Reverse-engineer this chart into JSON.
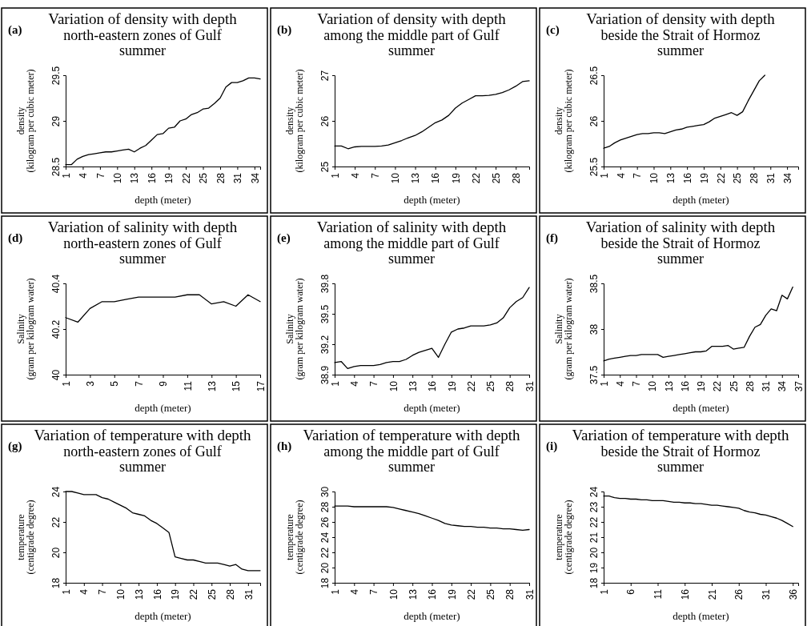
{
  "chart_data": [
    {
      "type": "line",
      "title": "Variation of density with depth",
      "subtitle": "north-eastern zones of Gulf\nsummer",
      "xlabel": "depth (meter)",
      "ylabel": "density\n(kilogram per cubic meter)",
      "annotations": [
        "(a)"
      ],
      "xlim": [
        1,
        35
      ],
      "xticks": [
        1,
        4,
        7,
        10,
        13,
        16,
        19,
        22,
        25,
        28,
        31,
        34
      ],
      "ylim": [
        28.5,
        29.5
      ],
      "yticks": [
        28.5,
        29,
        29.5
      ],
      "series": [
        {
          "color": "#000000",
          "x": [
            1,
            2,
            3,
            4,
            5,
            6,
            7,
            8,
            9,
            10,
            11,
            12,
            13,
            14,
            15,
            16,
            17,
            18,
            19,
            20,
            21,
            22,
            23,
            24,
            25,
            26,
            27,
            28,
            29,
            30,
            31,
            32,
            33,
            34,
            35
          ],
          "values": [
            28.52,
            28.52,
            28.58,
            28.61,
            28.63,
            28.64,
            28.65,
            28.66,
            28.66,
            28.67,
            28.68,
            28.69,
            28.66,
            28.7,
            28.73,
            28.79,
            28.85,
            28.86,
            28.92,
            28.93,
            29.0,
            29.02,
            29.07,
            29.09,
            29.13,
            29.14,
            29.19,
            29.25,
            29.37,
            29.42,
            29.42,
            29.44,
            29.47,
            29.47,
            29.46
          ]
        }
      ]
    },
    {
      "type": "line",
      "title": "Variation of density with depth",
      "subtitle": "among the middle part of Gulf\nsummer",
      "xlabel": "depth (meter)",
      "ylabel": "density\n(kilogram per cubic meter)",
      "annotations": [
        "(b)"
      ],
      "xlim": [
        1,
        30
      ],
      "xticks": [
        1,
        4,
        7,
        10,
        13,
        16,
        19,
        22,
        25,
        28
      ],
      "ylim": [
        25,
        27
      ],
      "yticks": [
        25,
        26,
        27
      ],
      "series": [
        {
          "color": "#000000",
          "x": [
            1,
            2,
            3,
            4,
            5,
            6,
            7,
            8,
            9,
            10,
            11,
            12,
            13,
            14,
            15,
            16,
            17,
            18,
            19,
            20,
            21,
            22,
            23,
            24,
            25,
            26,
            27,
            28,
            29,
            30
          ],
          "values": [
            25.45,
            25.45,
            25.39,
            25.43,
            25.44,
            25.44,
            25.44,
            25.45,
            25.47,
            25.52,
            25.57,
            25.63,
            25.68,
            25.76,
            25.86,
            25.96,
            26.02,
            26.12,
            26.28,
            26.39,
            26.47,
            26.55,
            26.55,
            26.56,
            26.58,
            26.62,
            26.68,
            26.76,
            26.86,
            26.88
          ]
        }
      ]
    },
    {
      "type": "line",
      "title": "Variation of density with depth",
      "subtitle": "beside the Strait of Hormoz\nsummer",
      "xlabel": "depth (meter)",
      "ylabel": "density\n(kilogram per cubic meter)",
      "annotations": [
        "(c)"
      ],
      "xlim": [
        1,
        36
      ],
      "xticks": [
        1,
        4,
        7,
        10,
        13,
        16,
        19,
        22,
        25,
        28,
        31,
        34
      ],
      "ylim": [
        25.5,
        26.5
      ],
      "yticks": [
        25.5,
        26,
        26.5
      ],
      "series": [
        {
          "color": "#000000",
          "x": [
            1,
            2,
            3,
            4,
            5,
            6,
            7,
            8,
            9,
            10,
            11,
            12,
            13,
            14,
            15,
            16,
            17,
            18,
            19,
            20,
            21,
            22,
            23,
            24,
            25,
            26,
            27,
            28,
            29,
            30
          ],
          "values": [
            25.7,
            25.72,
            25.76,
            25.79,
            25.81,
            25.83,
            25.85,
            25.86,
            25.86,
            25.87,
            25.87,
            25.86,
            25.88,
            25.9,
            25.91,
            25.93,
            25.94,
            25.95,
            25.96,
            25.99,
            26.03,
            26.05,
            26.07,
            26.09,
            26.06,
            26.1,
            26.22,
            26.33,
            26.44,
            26.5
          ]
        }
      ]
    },
    {
      "type": "line",
      "title": "Variation of salinity with depth",
      "subtitle": "north-eastern zones of Gulf\nsummer",
      "xlabel": "depth (meter)",
      "ylabel": "Salinity\n(gram per kilogram water)",
      "annotations": [
        "(d)"
      ],
      "xlim": [
        1,
        17
      ],
      "xticks": [
        1,
        3,
        5,
        7,
        9,
        11,
        13,
        15,
        17
      ],
      "ylim": [
        40,
        40.4
      ],
      "yticks": [
        40,
        40.2,
        40.4
      ],
      "series": [
        {
          "color": "#000000",
          "x": [
            1,
            2,
            3,
            4,
            5,
            6,
            7,
            8,
            9,
            10,
            11,
            12,
            13,
            14,
            15,
            16,
            17
          ],
          "values": [
            40.25,
            40.23,
            40.29,
            40.32,
            40.32,
            40.33,
            40.34,
            40.34,
            40.34,
            40.34,
            40.35,
            40.35,
            40.31,
            40.32,
            40.3,
            40.35,
            40.32
          ]
        }
      ]
    },
    {
      "type": "line",
      "title": "Variation of salinity with depth",
      "subtitle": "among the middle part of Gulf\nsummer",
      "xlabel": "depth (meter)",
      "ylabel": "Salinity\n(gram per kilogram water)",
      "annotations": [
        "(e)"
      ],
      "xlim": [
        1,
        31
      ],
      "xticks": [
        1,
        4,
        7,
        10,
        13,
        16,
        19,
        22,
        25,
        28,
        31
      ],
      "ylim": [
        38.9,
        39.8
      ],
      "yticks": [
        38.9,
        39.2,
        39.5,
        39.8
      ],
      "series": [
        {
          "color": "#000000",
          "x": [
            1,
            2,
            3,
            4,
            5,
            6,
            7,
            8,
            9,
            10,
            11,
            12,
            13,
            14,
            15,
            16,
            17,
            18,
            19,
            20,
            21,
            22,
            23,
            24,
            25,
            26,
            27,
            28,
            29,
            30,
            31
          ],
          "values": [
            39.02,
            39.03,
            38.96,
            38.98,
            38.99,
            38.99,
            38.99,
            39.0,
            39.02,
            39.03,
            39.03,
            39.05,
            39.09,
            39.12,
            39.14,
            39.16,
            39.07,
            39.2,
            39.32,
            39.35,
            39.36,
            39.38,
            39.38,
            39.38,
            39.39,
            39.41,
            39.46,
            39.56,
            39.62,
            39.66,
            39.76
          ]
        }
      ]
    },
    {
      "type": "line",
      "title": "Variation of salinity with depth",
      "subtitle": "beside the Strait of Hormoz\nsummer",
      "xlabel": "depth (meter)",
      "ylabel": "Salinity\n(gram per kilogram water)",
      "annotations": [
        "(f)"
      ],
      "xlim": [
        1,
        37
      ],
      "xticks": [
        1,
        4,
        7,
        10,
        13,
        16,
        19,
        22,
        25,
        28,
        31,
        34,
        37
      ],
      "ylim": [
        37.5,
        38.5
      ],
      "yticks": [
        37.5,
        38,
        38.5
      ],
      "series": [
        {
          "color": "#000000",
          "x": [
            1,
            2,
            3,
            4,
            5,
            6,
            7,
            8,
            9,
            10,
            11,
            12,
            13,
            14,
            15,
            16,
            17,
            18,
            19,
            20,
            21,
            22,
            23,
            24,
            25,
            26,
            27,
            28,
            29,
            30,
            31,
            32,
            33,
            34,
            35,
            36
          ],
          "values": [
            37.65,
            37.67,
            37.68,
            37.69,
            37.7,
            37.71,
            37.71,
            37.72,
            37.72,
            37.72,
            37.72,
            37.69,
            37.7,
            37.71,
            37.72,
            37.73,
            37.74,
            37.75,
            37.75,
            37.76,
            37.81,
            37.81,
            37.81,
            37.82,
            37.78,
            37.79,
            37.8,
            37.92,
            38.02,
            38.05,
            38.15,
            38.22,
            38.2,
            38.37,
            38.33,
            38.46
          ]
        }
      ]
    },
    {
      "type": "line",
      "title": "Variation of temperature with depth",
      "subtitle": "north-eastern zones of Gulf\nsummer",
      "xlabel": "depth (meter)",
      "ylabel": "temperature\n(centigrade degree)",
      "annotations": [
        "(g)"
      ],
      "xlim": [
        1,
        33
      ],
      "xticks": [
        1,
        4,
        7,
        10,
        13,
        16,
        19,
        22,
        25,
        28,
        31
      ],
      "ylim": [
        18,
        24
      ],
      "yticks": [
        18,
        20,
        22,
        24
      ],
      "series": [
        {
          "color": "#000000",
          "x": [
            1,
            2,
            3,
            4,
            5,
            6,
            7,
            8,
            9,
            10,
            11,
            12,
            13,
            14,
            15,
            16,
            17,
            18,
            19,
            20,
            21,
            22,
            23,
            24,
            25,
            26,
            27,
            28,
            29,
            30,
            31,
            32,
            33
          ],
          "values": [
            24.0,
            24.0,
            23.9,
            23.8,
            23.8,
            23.8,
            23.6,
            23.5,
            23.3,
            23.1,
            22.9,
            22.6,
            22.5,
            22.4,
            22.1,
            21.9,
            21.6,
            21.3,
            19.7,
            19.6,
            19.5,
            19.5,
            19.4,
            19.3,
            19.3,
            19.3,
            19.2,
            19.1,
            19.2,
            18.9,
            18.8,
            18.8,
            18.8
          ]
        }
      ]
    },
    {
      "type": "line",
      "title": "Variation of temperature with depth",
      "subtitle": "among the middle part of Gulf\nsummer",
      "xlabel": "depth (meter)",
      "ylabel": "temperature\n(centigrade degree)",
      "annotations": [
        "(h)"
      ],
      "xlim": [
        1,
        31
      ],
      "xticks": [
        1,
        4,
        7,
        10,
        13,
        16,
        19,
        22,
        25,
        28,
        31
      ],
      "ylim": [
        18,
        30
      ],
      "yticks": [
        18,
        20,
        22,
        24,
        26,
        28,
        30
      ],
      "series": [
        {
          "color": "#000000",
          "x": [
            1,
            2,
            3,
            4,
            5,
            6,
            7,
            8,
            9,
            10,
            11,
            12,
            13,
            14,
            15,
            16,
            17,
            18,
            19,
            20,
            21,
            22,
            23,
            24,
            25,
            26,
            27,
            28,
            29,
            30,
            31
          ],
          "values": [
            28.1,
            28.1,
            28.1,
            28.0,
            28.0,
            28.0,
            28.0,
            28.0,
            28.0,
            27.9,
            27.7,
            27.5,
            27.3,
            27.1,
            26.8,
            26.5,
            26.2,
            25.8,
            25.6,
            25.5,
            25.4,
            25.4,
            25.3,
            25.3,
            25.2,
            25.2,
            25.1,
            25.1,
            25.0,
            24.9,
            25.0
          ]
        }
      ]
    },
    {
      "type": "line",
      "title": "Variation of temperature with depth",
      "subtitle": "beside the Strait of Hormoz\nsummer",
      "xlabel": "depth (meter)",
      "ylabel": "temperature\n(centigrade degree)",
      "annotations": [
        "(i)"
      ],
      "xlim": [
        1,
        37
      ],
      "xticks": [
        1,
        6,
        11,
        16,
        21,
        26,
        31,
        36
      ],
      "ylim": [
        18,
        24
      ],
      "yticks": [
        18,
        19,
        20,
        21,
        22,
        23,
        24
      ],
      "series": [
        {
          "color": "#000000",
          "x": [
            1,
            2,
            3,
            4,
            5,
            6,
            7,
            8,
            9,
            10,
            11,
            12,
            13,
            14,
            15,
            16,
            17,
            18,
            19,
            20,
            21,
            22,
            23,
            24,
            25,
            26,
            27,
            28,
            29,
            30,
            31,
            32,
            33,
            34,
            35,
            36
          ],
          "values": [
            23.7,
            23.7,
            23.6,
            23.55,
            23.55,
            23.5,
            23.5,
            23.45,
            23.45,
            23.4,
            23.4,
            23.4,
            23.35,
            23.3,
            23.3,
            23.25,
            23.25,
            23.2,
            23.2,
            23.15,
            23.1,
            23.1,
            23.05,
            23.0,
            22.95,
            22.9,
            22.75,
            22.65,
            22.6,
            22.5,
            22.45,
            22.35,
            22.25,
            22.1,
            21.9,
            21.7
          ]
        }
      ]
    }
  ]
}
